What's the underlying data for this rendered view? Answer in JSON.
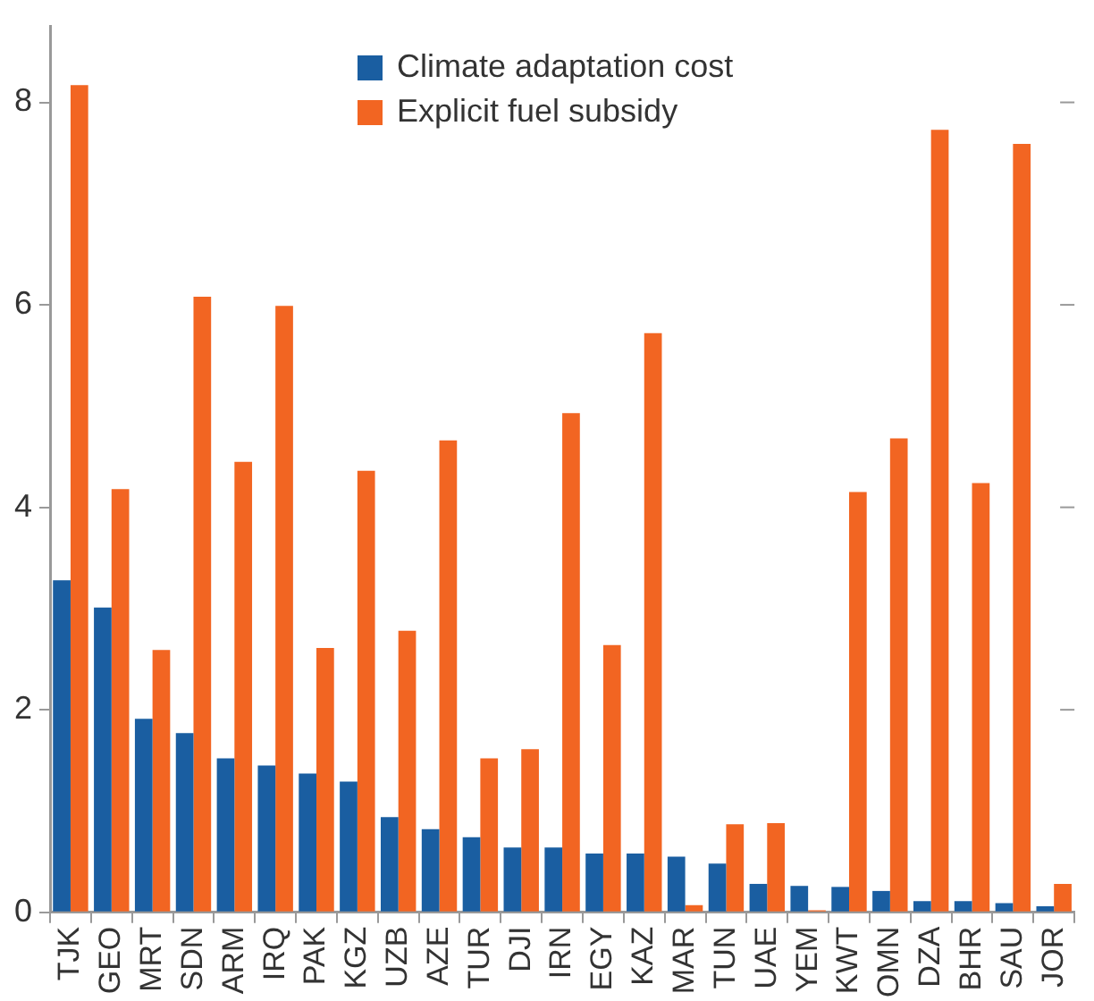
{
  "chart_data": {
    "type": "bar",
    "categories": [
      "TJK",
      "GEO",
      "MRT",
      "SDN",
      "ARM",
      "IRQ",
      "PAK",
      "KGZ",
      "UZB",
      "AZE",
      "TUR",
      "DJI",
      "IRN",
      "EGY",
      "KAZ",
      "MAR",
      "TUN",
      "UAE",
      "YEM",
      "KWT",
      "OMN",
      "DZA",
      "BHR",
      "SAU",
      "JOR"
    ],
    "series": [
      {
        "name": "Climate adaptation cost",
        "color": "#1a5ea1",
        "values": [
          3.28,
          3.01,
          1.91,
          1.77,
          1.52,
          1.45,
          1.37,
          1.29,
          0.94,
          0.82,
          0.74,
          0.64,
          0.64,
          0.58,
          0.58,
          0.55,
          0.48,
          0.28,
          0.26,
          0.25,
          0.21,
          0.11,
          0.11,
          0.09,
          0.06
        ]
      },
      {
        "name": "Explicit fuel subsidy",
        "color": "#f26522",
        "values": [
          8.17,
          4.18,
          2.59,
          6.08,
          4.45,
          5.99,
          2.61,
          4.36,
          2.78,
          4.66,
          1.52,
          1.61,
          4.93,
          2.64,
          5.72,
          0.07,
          0.87,
          0.88,
          0.02,
          4.15,
          4.68,
          7.73,
          4.24,
          7.59,
          0.28
        ]
      }
    ],
    "ylim": [
      0,
      8.75
    ],
    "yticks": [
      0,
      2,
      4,
      6,
      8
    ],
    "grid": false,
    "legend": "top"
  }
}
